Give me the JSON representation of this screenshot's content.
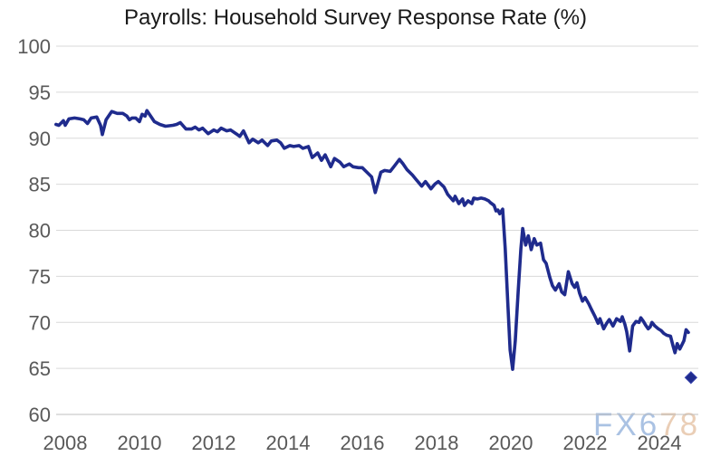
{
  "chart_data": {
    "type": "line",
    "title": "Payrolls: Household Survey Response Rate (%)",
    "xlabel": "",
    "ylabel": "",
    "ylim": [
      60,
      100
    ],
    "xlim": [
      2007.75,
      2025.1
    ],
    "y_ticks": [
      60,
      65,
      70,
      75,
      80,
      85,
      90,
      95,
      100
    ],
    "x_ticks": [
      2008,
      2010,
      2012,
      2014,
      2016,
      2018,
      2020,
      2022,
      2024
    ],
    "grid": "horizontal-only",
    "legend": "none",
    "series": [
      {
        "name": "Household Survey Response Rate (%)",
        "color": "#1f2b8d",
        "points": [
          [
            2007.75,
            91.5
          ],
          [
            2007.83,
            91.4
          ],
          [
            2007.95,
            91.9
          ],
          [
            2008.0,
            91.4
          ],
          [
            2008.1,
            92.1
          ],
          [
            2008.25,
            92.2
          ],
          [
            2008.4,
            92.1
          ],
          [
            2008.5,
            92.0
          ],
          [
            2008.6,
            91.6
          ],
          [
            2008.7,
            92.2
          ],
          [
            2008.85,
            92.3
          ],
          [
            2008.95,
            91.4
          ],
          [
            2009.0,
            90.4
          ],
          [
            2009.1,
            92.0
          ],
          [
            2009.25,
            92.9
          ],
          [
            2009.4,
            92.7
          ],
          [
            2009.55,
            92.7
          ],
          [
            2009.66,
            92.4
          ],
          [
            2009.73,
            92.0
          ],
          [
            2009.8,
            92.2
          ],
          [
            2009.9,
            92.2
          ],
          [
            2010.0,
            91.8
          ],
          [
            2010.07,
            92.6
          ],
          [
            2010.15,
            92.4
          ],
          [
            2010.2,
            93.0
          ],
          [
            2010.3,
            92.4
          ],
          [
            2010.4,
            91.8
          ],
          [
            2010.55,
            91.5
          ],
          [
            2010.7,
            91.3
          ],
          [
            2010.9,
            91.4
          ],
          [
            2011.0,
            91.5
          ],
          [
            2011.1,
            91.7
          ],
          [
            2011.25,
            91.0
          ],
          [
            2011.4,
            91.0
          ],
          [
            2011.5,
            91.2
          ],
          [
            2011.6,
            90.9
          ],
          [
            2011.7,
            91.1
          ],
          [
            2011.85,
            90.5
          ],
          [
            2012.0,
            90.9
          ],
          [
            2012.1,
            90.7
          ],
          [
            2012.2,
            91.1
          ],
          [
            2012.35,
            90.8
          ],
          [
            2012.45,
            90.9
          ],
          [
            2012.6,
            90.5
          ],
          [
            2012.7,
            90.2
          ],
          [
            2012.8,
            90.8
          ],
          [
            2012.95,
            89.5
          ],
          [
            2013.05,
            89.9
          ],
          [
            2013.2,
            89.5
          ],
          [
            2013.3,
            89.8
          ],
          [
            2013.45,
            89.2
          ],
          [
            2013.55,
            89.7
          ],
          [
            2013.7,
            89.8
          ],
          [
            2013.8,
            89.5
          ],
          [
            2013.9,
            88.9
          ],
          [
            2014.05,
            89.2
          ],
          [
            2014.15,
            89.1
          ],
          [
            2014.3,
            89.2
          ],
          [
            2014.4,
            88.9
          ],
          [
            2014.55,
            89.1
          ],
          [
            2014.65,
            87.9
          ],
          [
            2014.8,
            88.4
          ],
          [
            2014.9,
            87.6
          ],
          [
            2015.0,
            88.2
          ],
          [
            2015.15,
            86.9
          ],
          [
            2015.25,
            87.8
          ],
          [
            2015.4,
            87.4
          ],
          [
            2015.5,
            86.9
          ],
          [
            2015.65,
            87.2
          ],
          [
            2015.75,
            86.9
          ],
          [
            2015.9,
            86.8
          ],
          [
            2016.0,
            86.8
          ],
          [
            2016.1,
            86.4
          ],
          [
            2016.25,
            85.8
          ],
          [
            2016.35,
            84.1
          ],
          [
            2016.5,
            86.3
          ],
          [
            2016.6,
            86.5
          ],
          [
            2016.75,
            86.4
          ],
          [
            2016.85,
            86.9
          ],
          [
            2017.0,
            87.7
          ],
          [
            2017.1,
            87.2
          ],
          [
            2017.2,
            86.6
          ],
          [
            2017.35,
            86.0
          ],
          [
            2017.45,
            85.5
          ],
          [
            2017.6,
            84.8
          ],
          [
            2017.7,
            85.3
          ],
          [
            2017.85,
            84.5
          ],
          [
            2017.95,
            85.0
          ],
          [
            2018.05,
            85.3
          ],
          [
            2018.2,
            84.7
          ],
          [
            2018.3,
            83.9
          ],
          [
            2018.45,
            83.2
          ],
          [
            2018.5,
            83.7
          ],
          [
            2018.6,
            82.9
          ],
          [
            2018.7,
            83.4
          ],
          [
            2018.75,
            82.7
          ],
          [
            2018.85,
            83.2
          ],
          [
            2018.95,
            82.9
          ],
          [
            2019.0,
            83.5
          ],
          [
            2019.1,
            83.4
          ],
          [
            2019.2,
            83.5
          ],
          [
            2019.3,
            83.4
          ],
          [
            2019.4,
            83.2
          ],
          [
            2019.45,
            83.0
          ],
          [
            2019.55,
            82.7
          ],
          [
            2019.6,
            82.1
          ],
          [
            2019.65,
            82.2
          ],
          [
            2019.7,
            81.8
          ],
          [
            2019.78,
            82.3
          ],
          [
            2019.85,
            78.0
          ],
          [
            2019.92,
            72.0
          ],
          [
            2019.98,
            67.0
          ],
          [
            2020.05,
            64.9
          ],
          [
            2020.12,
            68.0
          ],
          [
            2020.2,
            73.5
          ],
          [
            2020.27,
            78.0
          ],
          [
            2020.32,
            80.2
          ],
          [
            2020.4,
            78.4
          ],
          [
            2020.47,
            79.4
          ],
          [
            2020.55,
            77.9
          ],
          [
            2020.63,
            79.1
          ],
          [
            2020.7,
            78.4
          ],
          [
            2020.8,
            78.6
          ],
          [
            2020.88,
            76.8
          ],
          [
            2020.95,
            76.4
          ],
          [
            2021.05,
            74.9
          ],
          [
            2021.12,
            74.0
          ],
          [
            2021.2,
            73.5
          ],
          [
            2021.3,
            74.2
          ],
          [
            2021.37,
            73.3
          ],
          [
            2021.45,
            73.0
          ],
          [
            2021.55,
            75.5
          ],
          [
            2021.65,
            74.2
          ],
          [
            2021.72,
            73.8
          ],
          [
            2021.78,
            74.3
          ],
          [
            2021.85,
            73.2
          ],
          [
            2021.93,
            72.3
          ],
          [
            2022.0,
            72.7
          ],
          [
            2022.1,
            72.0
          ],
          [
            2022.17,
            71.4
          ],
          [
            2022.27,
            70.6
          ],
          [
            2022.35,
            69.9
          ],
          [
            2022.4,
            70.4
          ],
          [
            2022.5,
            69.3
          ],
          [
            2022.58,
            69.9
          ],
          [
            2022.65,
            70.3
          ],
          [
            2022.75,
            69.6
          ],
          [
            2022.85,
            70.4
          ],
          [
            2022.95,
            70.1
          ],
          [
            2023.0,
            70.6
          ],
          [
            2023.07,
            69.8
          ],
          [
            2023.12,
            69.0
          ],
          [
            2023.2,
            66.9
          ],
          [
            2023.28,
            69.6
          ],
          [
            2023.37,
            70.1
          ],
          [
            2023.45,
            70.0
          ],
          [
            2023.5,
            70.5
          ],
          [
            2023.57,
            70.1
          ],
          [
            2023.63,
            69.7
          ],
          [
            2023.7,
            69.3
          ],
          [
            2023.75,
            69.5
          ],
          [
            2023.8,
            70.0
          ],
          [
            2023.88,
            69.6
          ],
          [
            2023.97,
            69.3
          ],
          [
            2024.05,
            69.1
          ],
          [
            2024.12,
            68.8
          ],
          [
            2024.2,
            68.6
          ],
          [
            2024.3,
            68.5
          ],
          [
            2024.37,
            67.4
          ],
          [
            2024.42,
            66.7
          ],
          [
            2024.48,
            67.7
          ],
          [
            2024.55,
            67.1
          ],
          [
            2024.6,
            67.5
          ],
          [
            2024.66,
            68.0
          ],
          [
            2024.72,
            69.2
          ],
          [
            2024.78,
            68.9
          ]
        ]
      }
    ],
    "latest_point": {
      "x": 2024.85,
      "value": 64,
      "marker": "diamond"
    }
  },
  "watermark": {
    "text": "FX678",
    "part1": "FX6",
    "part2": "78",
    "color1": "#aac2e3",
    "color2": "#eaceb6"
  },
  "colors": {
    "background": "#ffffff",
    "title": "#1a1a1a",
    "axis_label": "#595959",
    "gridline": "#d9d9d9",
    "axis_line": "#bfbfbf",
    "line": "#1f2b8d"
  }
}
